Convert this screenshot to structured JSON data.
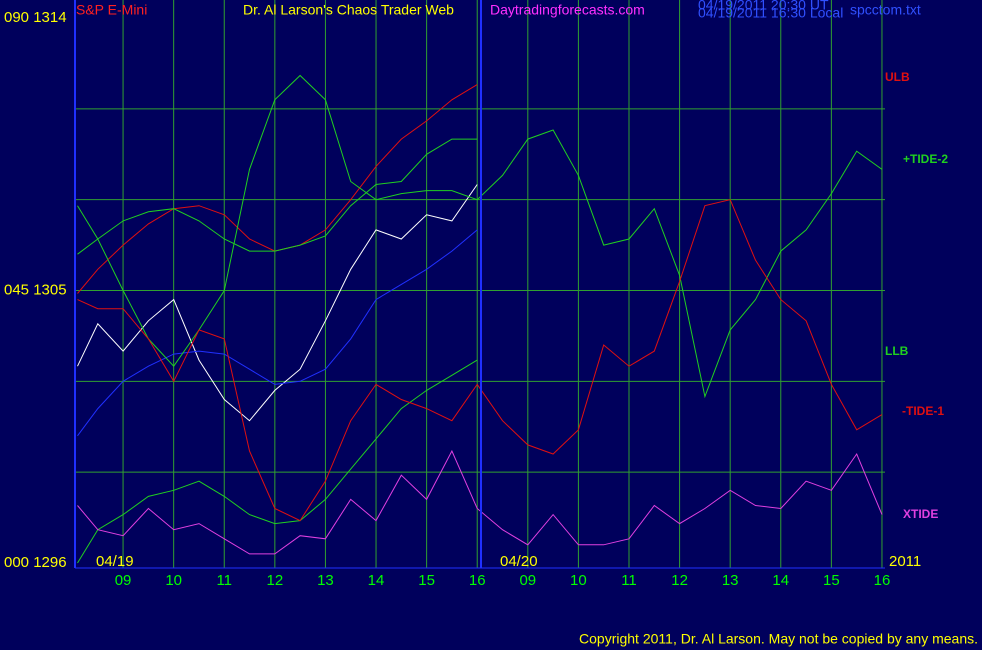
{
  "chart_data": {
    "type": "line",
    "instrument": "S&P E-Mini",
    "title": "Dr. Al Larson's Chaos Trader Web",
    "subtitle": "Daytradingforecasts.com",
    "timestamps": [
      "04/19/2011 20:30 UT",
      "04/19/2011 16:30 Local"
    ],
    "file": "spcctom.txt",
    "date_labels": [
      "04/19",
      "04/20",
      "2011"
    ],
    "copyright": "Copyright 2011, Dr. Al Larson. May not be copied by any means.",
    "xlim": [
      -0.95,
      15.06
    ],
    "ylim": [
      1296,
      1314
    ],
    "yticks": [
      {
        "value": 1314,
        "label": "090 1314"
      },
      {
        "value": 1305,
        "label": "045 1305"
      },
      {
        "value": 1296,
        "label": "000 1296"
      }
    ],
    "ygrid": [
      1299,
      1302,
      1305,
      1308,
      1311
    ],
    "xticks": [
      {
        "value": 0,
        "label": "09"
      },
      {
        "value": 1,
        "label": "10"
      },
      {
        "value": 2,
        "label": "11"
      },
      {
        "value": 3,
        "label": "12"
      },
      {
        "value": 4,
        "label": "13"
      },
      {
        "value": 5,
        "label": "14"
      },
      {
        "value": 6,
        "label": "15"
      },
      {
        "value": 7,
        "label": "16"
      },
      {
        "value": 8,
        "label": "09"
      },
      {
        "value": 9,
        "label": "10"
      },
      {
        "value": 10,
        "label": "11"
      },
      {
        "value": 11,
        "label": "12"
      },
      {
        "value": 12,
        "label": "13"
      },
      {
        "value": 13,
        "label": "14"
      },
      {
        "value": 14,
        "label": "15"
      },
      {
        "value": 15,
        "label": "16"
      }
    ],
    "grid": true,
    "x": [
      -0.9,
      -0.5,
      0,
      0.5,
      1,
      1.5,
      2,
      2.5,
      3,
      3.5,
      4,
      4.5,
      5,
      5.5,
      6,
      6.5,
      7,
      7.5,
      8,
      8.5,
      9,
      9.5,
      10,
      10.5,
      11,
      11.5,
      12,
      12.5,
      13,
      13.5,
      14,
      14.5,
      15
    ],
    "series": [
      {
        "color": "#ffffff",
        "values": [
          1302.5,
          1303.9,
          1303.0,
          1304.0,
          1304.7,
          1302.7,
          1301.4,
          1300.7,
          1301.7,
          1302.4,
          1304.0,
          1305.7,
          1307.0,
          1306.7,
          1307.5,
          1307.3,
          1308.5,
          null,
          null,
          null,
          null,
          null,
          null,
          null,
          null,
          null,
          null,
          null,
          null,
          null,
          null,
          null,
          null
        ]
      },
      {
        "color": "#2030ff",
        "values": [
          1300.2,
          1301.1,
          1302.0,
          1302.5,
          1302.9,
          1303.0,
          1302.9,
          1302.4,
          1301.9,
          1302.0,
          1302.4,
          1303.4,
          1304.7,
          1305.2,
          1305.7,
          1306.3,
          1307.0,
          null,
          null,
          null,
          null,
          null,
          null,
          null,
          null,
          null,
          null,
          null,
          null,
          null,
          null,
          null,
          null
        ]
      },
      {
        "name": "ULB",
        "color": "#e01010",
        "values": [
          1304.9,
          1305.7,
          1306.5,
          1307.2,
          1307.7,
          1307.8,
          1307.5,
          1306.7,
          1306.3,
          1306.5,
          1307.0,
          1308.0,
          1309.1,
          1310.0,
          1310.6,
          1311.3,
          1311.8,
          null,
          null,
          null,
          null,
          null,
          null,
          null,
          null,
          null,
          null,
          null,
          null,
          null,
          null,
          null,
          null
        ]
      },
      {
        "color": "#20d020",
        "values": [
          1306.2,
          1306.7,
          1307.3,
          1307.6,
          1307.7,
          1307.3,
          1306.7,
          1306.3,
          1306.3,
          1306.5,
          1306.8,
          1307.8,
          1308.5,
          1308.6,
          1309.5,
          1310.0,
          1310.0,
          null,
          null,
          null,
          null,
          null,
          null,
          null,
          null,
          null,
          null,
          null,
          null,
          null,
          null,
          null,
          null
        ]
      },
      {
        "name": "LLB",
        "color": "#20d020",
        "values": [
          1296.0,
          1297.1,
          1297.6,
          1298.2,
          1298.4,
          1298.7,
          1298.2,
          1297.6,
          1297.3,
          1297.4,
          1298.1,
          1299.1,
          1300.1,
          1301.1,
          1301.7,
          1302.2,
          1302.7,
          null,
          null,
          null,
          null,
          null,
          null,
          null,
          null,
          null,
          null,
          null,
          null,
          null,
          null,
          null,
          null
        ]
      },
      {
        "name": "+TIDE-2",
        "color": "#20d020",
        "values": [
          1307.8,
          1306.7,
          1305.0,
          1303.4,
          1302.5,
          1303.7,
          1305.0,
          1309.0,
          1311.3,
          1312.1,
          1311.3,
          1308.6,
          1308.0,
          1308.2,
          1308.3,
          1308.3,
          1308.0,
          1308.8,
          1310.0,
          1310.3,
          1308.8,
          1306.5,
          1306.7,
          1307.7,
          1305.5,
          1301.5,
          1303.7,
          1304.7,
          1306.3,
          1307.0,
          1308.2,
          1309.6,
          1309.0
        ]
      },
      {
        "name": "-TIDE-1",
        "color": "#e01010",
        "values": [
          1304.7,
          1304.4,
          1304.4,
          1303.4,
          1302.0,
          1303.7,
          1303.4,
          1299.7,
          1297.8,
          1297.4,
          1298.7,
          1300.7,
          1301.9,
          1301.4,
          1301.1,
          1300.7,
          1301.9,
          1300.7,
          1299.9,
          1299.6,
          1300.4,
          1303.2,
          1302.5,
          1303.0,
          1305.3,
          1307.8,
          1308.0,
          1306.0,
          1304.7,
          1304.0,
          1301.9,
          1300.4,
          1300.9
        ]
      },
      {
        "name": "XTIDE",
        "color": "#e040e0",
        "values": [
          1297.9,
          1297.1,
          1296.9,
          1297.8,
          1297.1,
          1297.3,
          1296.8,
          1296.3,
          1296.3,
          1296.9,
          1296.8,
          1298.1,
          1297.4,
          1298.9,
          1298.1,
          1299.7,
          1297.8,
          1297.1,
          1296.6,
          1297.6,
          1296.6,
          1296.6,
          1296.8,
          1297.9,
          1297.3,
          1297.8,
          1298.4,
          1297.9,
          1297.8,
          1298.7,
          1298.4,
          1299.6,
          1297.6
        ]
      }
    ]
  }
}
